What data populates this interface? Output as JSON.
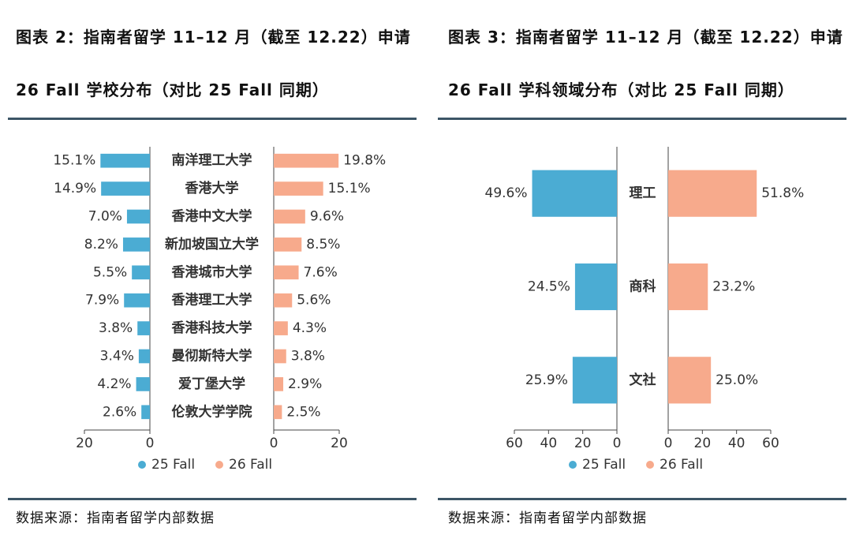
{
  "chart_data": [
    {
      "type": "butterfly",
      "title": "图表 2：指南者留学 11–12 月（截至 12.22）申请 26 Fall 学校分布（对比 25 Fall 同期）",
      "categories": [
        "南洋理工大学",
        "香港大学",
        "香港中文大学",
        "新加坡国立大学",
        "香港城市大学",
        "香港理工大学",
        "香港科技大学",
        "曼彻斯特大学",
        "爱丁堡大学",
        "伦敦大学学院"
      ],
      "series": [
        {
          "name": "25 Fall",
          "color": "#4bacd3",
          "values": [
            15.1,
            14.9,
            7.0,
            8.2,
            5.5,
            7.9,
            3.8,
            3.4,
            4.2,
            2.6
          ],
          "value_labels": [
            "15.1%",
            "14.9%",
            "7.0%",
            "8.2%",
            "5.5%",
            "7.9%",
            "3.8%",
            "3.4%",
            "4.2%",
            "2.6%"
          ]
        },
        {
          "name": "26 Fall",
          "color": "#f7aa8c",
          "values": [
            19.8,
            15.1,
            9.6,
            8.5,
            7.6,
            5.6,
            4.3,
            3.8,
            2.9,
            2.5
          ],
          "value_labels": [
            "19.8%",
            "15.1%",
            "9.6%",
            "8.5%",
            "7.6%",
            "5.6%",
            "4.3%",
            "3.8%",
            "2.9%",
            "2.5%"
          ]
        }
      ],
      "xlim": [
        0,
        20
      ],
      "xticks": [
        0,
        20
      ],
      "source": "数据来源：指南者留学内部数据"
    },
    {
      "type": "butterfly",
      "title": "图表 3：指南者留学 11–12 月（截至 12.22）申请 26 Fall 学科领域分布（对比 25 Fall 同期）",
      "categories": [
        "理工",
        "商科",
        "文社"
      ],
      "series": [
        {
          "name": "25 Fall",
          "color": "#4bacd3",
          "values": [
            49.6,
            24.5,
            25.9
          ],
          "value_labels": [
            "49.6%",
            "24.5%",
            "25.9%"
          ]
        },
        {
          "name": "26 Fall",
          "color": "#f7aa8c",
          "values": [
            51.8,
            23.2,
            25.0
          ],
          "value_labels": [
            "51.8%",
            "23.2%",
            "25.0%"
          ]
        }
      ],
      "xlim": [
        0,
        60
      ],
      "xticks": [
        0,
        20,
        40,
        60
      ],
      "source": "数据来源：指南者留学内部数据"
    }
  ]
}
